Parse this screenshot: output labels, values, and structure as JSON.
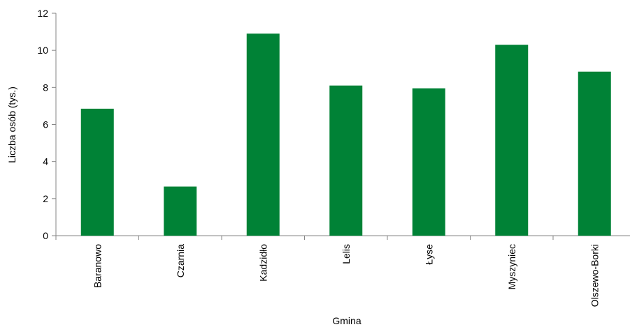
{
  "chart_data": {
    "type": "bar",
    "title": "",
    "xlabel": "Gmina",
    "ylabel": "Liczba osób (tys.)",
    "categories": [
      "Baranowo",
      "Czarnia",
      "Kadzidło",
      "Lelis",
      "Łyse",
      "Myszyniec",
      "Olszewo-Borki"
    ],
    "values": [
      6.85,
      2.65,
      10.9,
      8.1,
      7.95,
      10.3,
      8.85
    ],
    "ylim": [
      0,
      12
    ],
    "yticks": [
      "0",
      "2",
      "4",
      "6",
      "8",
      "10",
      "12"
    ],
    "grid": false,
    "legend": "none",
    "bar_color": "#008236"
  }
}
